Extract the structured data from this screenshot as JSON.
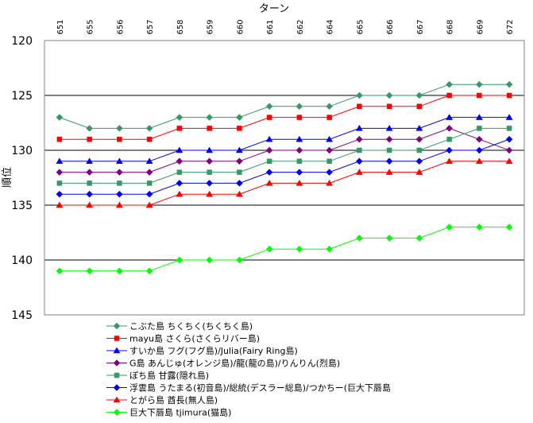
{
  "chart_data": {
    "type": "line",
    "title": "",
    "xlabel": "ターン",
    "ylabel": "順位",
    "x": [
      "651",
      "655",
      "656",
      "657",
      "658",
      "659",
      "660",
      "661",
      "662",
      "664",
      "665",
      "666",
      "667",
      "668",
      "669",
      "672"
    ],
    "ylim": [
      120,
      145
    ],
    "y_ticks": [
      120,
      125,
      130,
      135,
      140,
      145
    ],
    "y_inverted": true,
    "x_axis_position": "top",
    "grid": "horizontal major lines at 125, 130, 135, 140",
    "legend_position": "bottom",
    "series": [
      {
        "name": "こぶた島 ちくちく(ちくちく島)",
        "color": "#339966",
        "marker": "diamond",
        "values": [
          127,
          128,
          128,
          128,
          127,
          127,
          127,
          126,
          126,
          126,
          125,
          125,
          125,
          124,
          124,
          124
        ]
      },
      {
        "name": "mayu島 さくら(さくらリバー島)",
        "color": "#ff0000",
        "marker": "square",
        "values": [
          129,
          129,
          129,
          129,
          128,
          128,
          128,
          127,
          127,
          127,
          126,
          126,
          126,
          125,
          125,
          125
        ]
      },
      {
        "name": "すいか島 フグ(フグ島)/Julia(Fairy Ring島)",
        "color": "#0000ff",
        "marker": "triangle",
        "values": [
          131,
          131,
          131,
          131,
          130,
          130,
          130,
          129,
          129,
          129,
          128,
          128,
          128,
          127,
          127,
          127
        ]
      },
      {
        "name": "G島 あんじゅ(オレンジ島)/龍(龍の島)/りんりん(烈島)",
        "color": "#800080",
        "marker": "diamond",
        "values": [
          132,
          132,
          132,
          132,
          131,
          131,
          131,
          130,
          130,
          130,
          129,
          129,
          129,
          128,
          129,
          130
        ]
      },
      {
        "name": "ぽち島 甘露(隠れ島)",
        "color": "#339966",
        "marker": "square",
        "values": [
          133,
          133,
          133,
          133,
          132,
          132,
          132,
          131,
          131,
          131,
          130,
          130,
          130,
          129,
          128,
          128
        ]
      },
      {
        "name": "浮雲島 うたまる(初音島)/総統(デスラー総島)/つかちー(巨大下唇島",
        "color": "#0000ff",
        "marker": "diamond",
        "values": [
          134,
          134,
          134,
          134,
          133,
          133,
          133,
          132,
          132,
          132,
          131,
          131,
          131,
          130,
          130,
          129
        ]
      },
      {
        "name": "とがら島 酋長(無人島)",
        "color": "#ff0000",
        "marker": "triangle",
        "values": [
          135,
          135,
          135,
          135,
          134,
          134,
          134,
          133,
          133,
          133,
          132,
          132,
          132,
          131,
          131,
          131
        ]
      },
      {
        "name": "巨大下唇島 tjimura(猫島)",
        "color": "#00ff00",
        "marker": "diamond",
        "values": [
          141,
          141,
          141,
          141,
          140,
          140,
          140,
          139,
          139,
          139,
          138,
          138,
          138,
          137,
          137,
          137
        ]
      }
    ]
  }
}
